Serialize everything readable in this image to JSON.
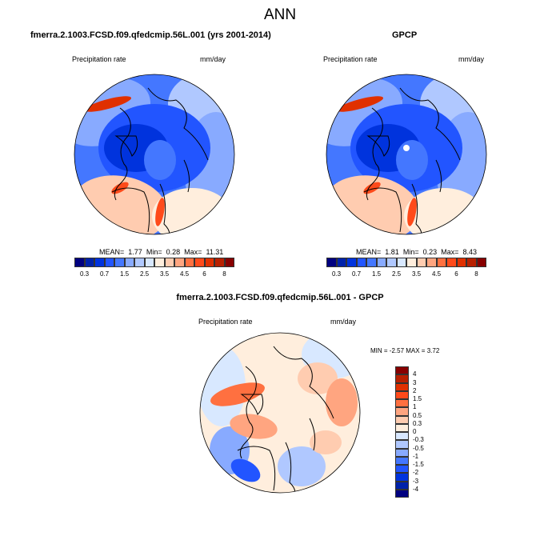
{
  "title": "ANN",
  "colors": {
    "seq": [
      "#000080",
      "#0022aa",
      "#0033dd",
      "#2255ff",
      "#4477ff",
      "#88aaff",
      "#b0c8ff",
      "#d8e8ff",
      "#ffeedd",
      "#ffccb0",
      "#ffa580",
      "#ff7040",
      "#ff4a1a",
      "#e03000",
      "#b82000",
      "#880000"
    ],
    "land": "#000000"
  },
  "chart_data": [
    {
      "type": "heatmap",
      "projection": "polar-stereographic-north",
      "title": "fmerra.2.1003.FCSD.f09.qfedcmip.56L.001 (yrs 2001-2014)",
      "left_label": "Precipitation rate",
      "right_label": "mm/day",
      "stats": {
        "mean_label": "MEAN=",
        "mean": "1.77",
        "min_label": "Min=",
        "min": "0.28",
        "max_label": "Max=",
        "max": "11.31"
      },
      "colorbar_ticks": [
        "0.3",
        "0.7",
        "1.5",
        "2.5",
        "3.5",
        "4.5",
        "6",
        "8"
      ]
    },
    {
      "type": "heatmap",
      "projection": "polar-stereographic-north",
      "title": "GPCP",
      "left_label": "Precipitation rate",
      "right_label": "mm/day",
      "stats": {
        "mean_label": "MEAN=",
        "mean": "1.81",
        "min_label": "Min=",
        "min": "0.23",
        "max_label": "Max=",
        "max": "8.43"
      },
      "colorbar_ticks": [
        "0.3",
        "0.7",
        "1.5",
        "2.5",
        "3.5",
        "4.5",
        "6",
        "8"
      ]
    },
    {
      "type": "heatmap",
      "projection": "polar-stereographic-north",
      "title": "fmerra.2.1003.FCSD.f09.qfedcmip.56L.001 - GPCP",
      "left_label": "Precipitation rate",
      "right_label": "mm/day",
      "minmax": "MIN = -2.57 MAX =  3.72",
      "colorbar_ticks": [
        "4",
        "3",
        "2",
        "1.5",
        "1",
        "0.5",
        "0.3",
        "0",
        "-0.3",
        "-0.5",
        "-1",
        "-1.5",
        "-2",
        "-3",
        "-4"
      ]
    }
  ]
}
